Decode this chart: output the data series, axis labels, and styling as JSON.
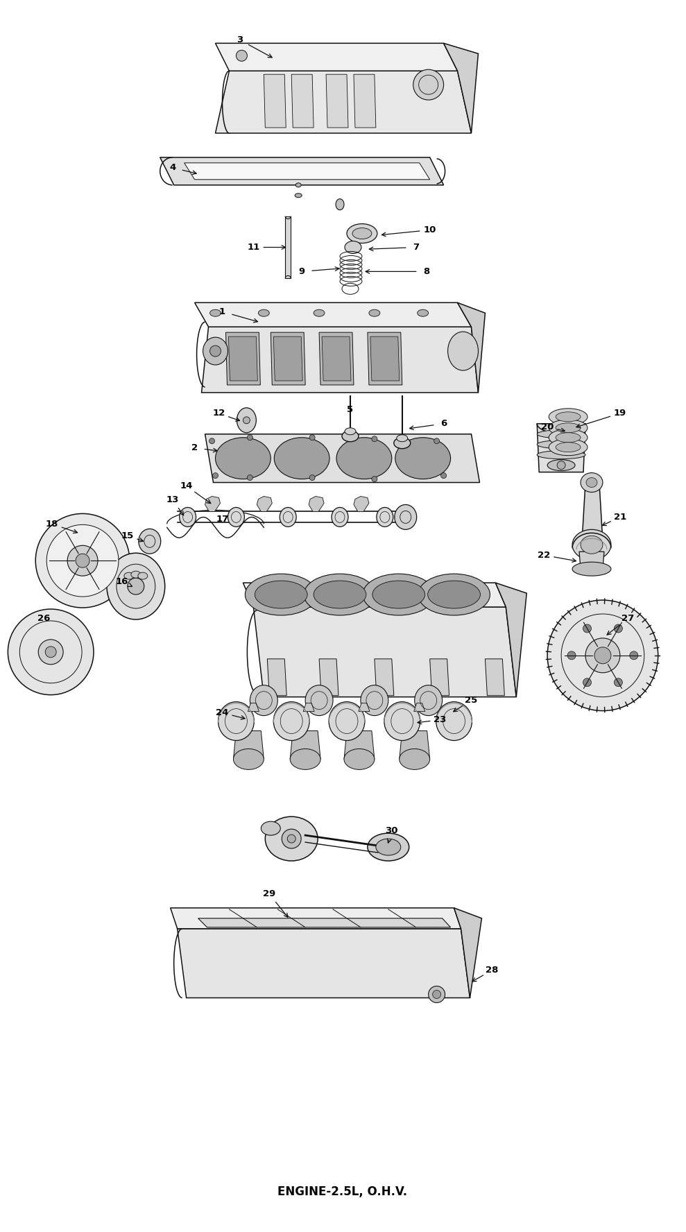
{
  "title": "ENGINE-2.5L, O.H.V.",
  "title_fontsize": 12,
  "title_fontweight": "bold",
  "bg_color": "#ffffff",
  "fg_color": "#000000",
  "fig_width": 9.89,
  "fig_height": 17.76,
  "dpi": 100,
  "label_fontsize": 9.5,
  "arrow_lw": 1.0,
  "part_lw": 1.1,
  "part_ec": "#111111",
  "part_fc": "#f5f5f5",
  "shade_fc": "#cccccc",
  "dark_fc": "#aaaaaa"
}
